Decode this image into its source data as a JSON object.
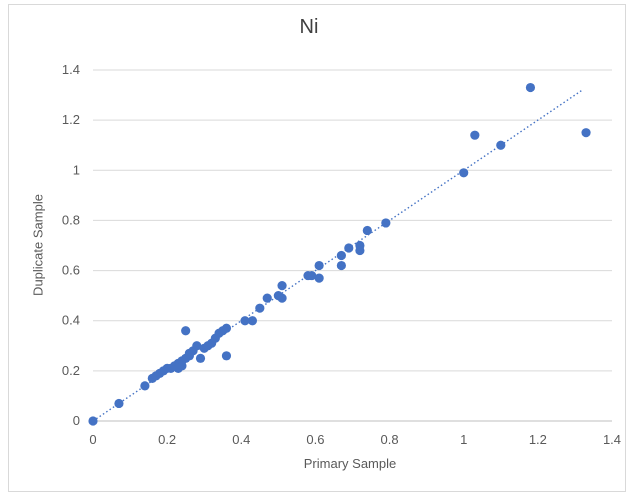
{
  "chart_data": {
    "type": "scatter",
    "title": "Ni",
    "xlabel": "Primary Sample",
    "ylabel": "Duplicate Sample",
    "xlim": [
      0,
      1.4
    ],
    "ylim": [
      0,
      1.4
    ],
    "x_ticks": [
      "0",
      "0.2",
      "0.4",
      "0.6",
      "0.8",
      "1",
      "1.2",
      "1.4"
    ],
    "y_ticks": [
      "0",
      "0.2",
      "0.4",
      "0.6",
      "0.8",
      "1",
      "1.2",
      "1.4"
    ],
    "grid": "horizontal",
    "trendline": {
      "style": "dotted",
      "x": [
        0,
        1.32
      ],
      "y": [
        0,
        1.32
      ]
    },
    "marker_color": "#4472c4",
    "series": [
      {
        "points": [
          [
            0.0,
            0.0
          ],
          [
            0.07,
            0.07
          ],
          [
            0.14,
            0.14
          ],
          [
            0.16,
            0.17
          ],
          [
            0.17,
            0.18
          ],
          [
            0.18,
            0.19
          ],
          [
            0.19,
            0.2
          ],
          [
            0.2,
            0.21
          ],
          [
            0.21,
            0.21
          ],
          [
            0.22,
            0.22
          ],
          [
            0.23,
            0.21
          ],
          [
            0.23,
            0.23
          ],
          [
            0.24,
            0.22
          ],
          [
            0.24,
            0.24
          ],
          [
            0.25,
            0.36
          ],
          [
            0.25,
            0.25
          ],
          [
            0.26,
            0.26
          ],
          [
            0.26,
            0.27
          ],
          [
            0.27,
            0.28
          ],
          [
            0.28,
            0.3
          ],
          [
            0.29,
            0.25
          ],
          [
            0.3,
            0.29
          ],
          [
            0.31,
            0.3
          ],
          [
            0.32,
            0.31
          ],
          [
            0.33,
            0.33
          ],
          [
            0.34,
            0.35
          ],
          [
            0.35,
            0.36
          ],
          [
            0.36,
            0.37
          ],
          [
            0.36,
            0.26
          ],
          [
            0.41,
            0.4
          ],
          [
            0.43,
            0.4
          ],
          [
            0.45,
            0.45
          ],
          [
            0.47,
            0.49
          ],
          [
            0.5,
            0.5
          ],
          [
            0.51,
            0.54
          ],
          [
            0.51,
            0.49
          ],
          [
            0.58,
            0.58
          ],
          [
            0.59,
            0.58
          ],
          [
            0.61,
            0.62
          ],
          [
            0.61,
            0.57
          ],
          [
            0.67,
            0.66
          ],
          [
            0.67,
            0.62
          ],
          [
            0.69,
            0.69
          ],
          [
            0.72,
            0.7
          ],
          [
            0.72,
            0.68
          ],
          [
            0.74,
            0.76
          ],
          [
            0.79,
            0.79
          ],
          [
            1.0,
            0.99
          ],
          [
            1.03,
            1.14
          ],
          [
            1.1,
            1.1
          ],
          [
            1.18,
            1.33
          ],
          [
            1.33,
            1.15
          ]
        ]
      }
    ]
  }
}
